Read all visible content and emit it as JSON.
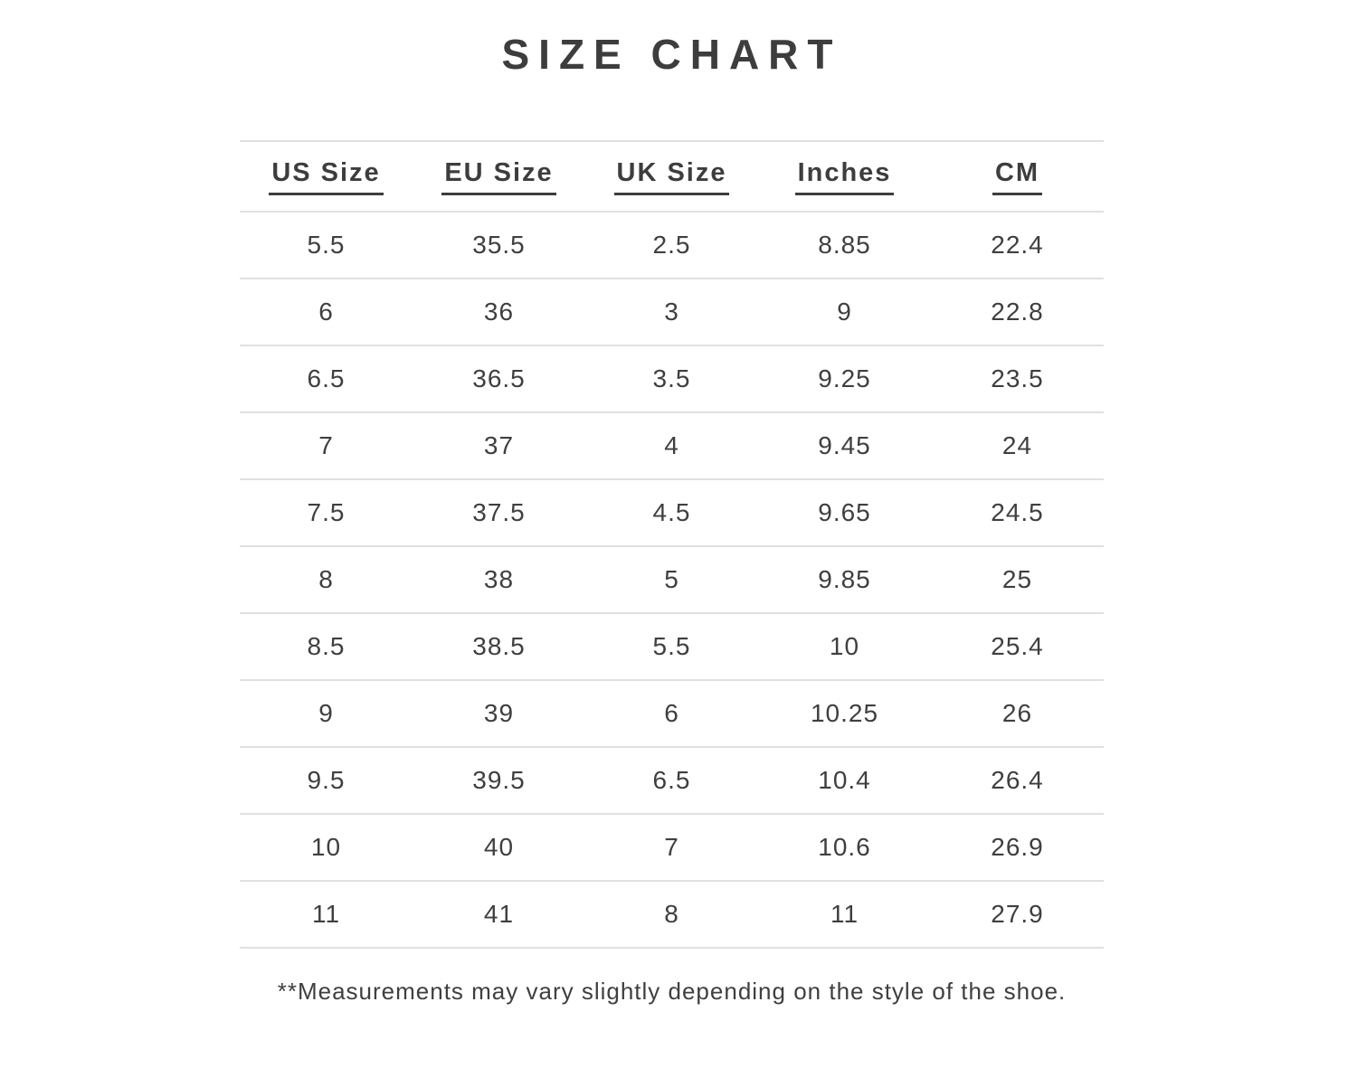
{
  "colors": {
    "text": "#3d3d3d",
    "cell_text": "#3f3f3f",
    "divider": "#e0e0e0",
    "background": "#ffffff"
  },
  "chart_data": {
    "type": "table",
    "title": "SIZE CHART",
    "columns": [
      "US Size",
      "EU Size",
      "UK Size",
      "Inches",
      "CM"
    ],
    "rows": [
      [
        "5.5",
        "35.5",
        "2.5",
        "8.85",
        "22.4"
      ],
      [
        "6",
        "36",
        "3",
        "9",
        "22.8"
      ],
      [
        "6.5",
        "36.5",
        "3.5",
        "9.25",
        "23.5"
      ],
      [
        "7",
        "37",
        "4",
        "9.45",
        "24"
      ],
      [
        "7.5",
        "37.5",
        "4.5",
        "9.65",
        "24.5"
      ],
      [
        "8",
        "38",
        "5",
        "9.85",
        "25"
      ],
      [
        "8.5",
        "38.5",
        "5.5",
        "10",
        "25.4"
      ],
      [
        "9",
        "39",
        "6",
        "10.25",
        "26"
      ],
      [
        "9.5",
        "39.5",
        "6.5",
        "10.4",
        "26.4"
      ],
      [
        "10",
        "40",
        "7",
        "10.6",
        "26.9"
      ],
      [
        "11",
        "41",
        "8",
        "11",
        "27.9"
      ]
    ],
    "footnote": "**Measurements may vary slightly depending on the style of the shoe."
  }
}
